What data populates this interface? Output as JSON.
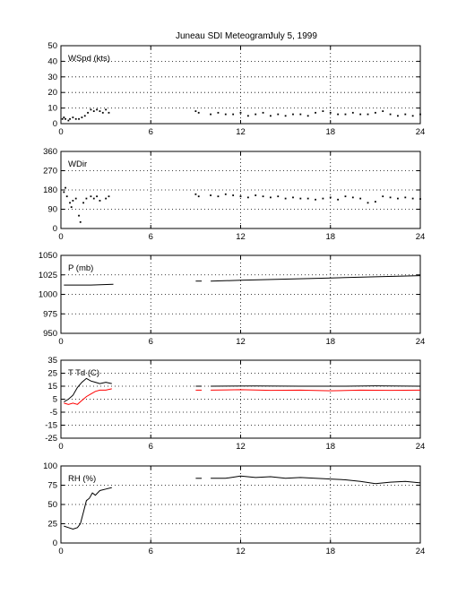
{
  "figure": {
    "title": "Juneau SDI Meteogram:",
    "date": "July  5, 1999"
  },
  "chart_data": [
    {
      "type": "scatter",
      "panel_label": "WSpd (kts)",
      "xlim": [
        0,
        24
      ],
      "ylim": [
        0,
        50
      ],
      "xticks": [
        "0",
        "6",
        "12",
        "18",
        "24"
      ],
      "yticks": [
        "0",
        "10",
        "20",
        "30",
        "40",
        "50"
      ],
      "grid": true,
      "series": [
        {
          "color": "#000000",
          "points": [
            [
              0.1,
              3
            ],
            [
              0.2,
              4
            ],
            [
              0.3,
              3
            ],
            [
              0.5,
              2
            ],
            [
              0.6,
              3
            ],
            [
              0.8,
              4
            ],
            [
              1.0,
              3
            ],
            [
              1.2,
              3
            ],
            [
              1.4,
              4
            ],
            [
              1.6,
              5
            ],
            [
              1.8,
              7
            ],
            [
              2.0,
              9
            ],
            [
              2.2,
              8
            ],
            [
              2.4,
              9
            ],
            [
              2.6,
              8
            ],
            [
              2.8,
              7
            ],
            [
              3.0,
              9
            ],
            [
              3.2,
              7
            ],
            [
              9.0,
              8
            ],
            [
              9.2,
              7
            ],
            [
              10.0,
              6
            ],
            [
              10.5,
              7
            ],
            [
              11.0,
              6
            ],
            [
              11.5,
              6
            ],
            [
              12.0,
              7
            ],
            [
              12.5,
              5
            ],
            [
              13.0,
              6
            ],
            [
              13.5,
              7
            ],
            [
              14.0,
              5
            ],
            [
              14.5,
              6
            ],
            [
              15.0,
              5
            ],
            [
              15.5,
              6
            ],
            [
              16.0,
              6
            ],
            [
              16.5,
              5
            ],
            [
              17.0,
              7
            ],
            [
              17.5,
              8
            ],
            [
              18.0,
              7
            ],
            [
              18.5,
              6
            ],
            [
              19.0,
              6
            ],
            [
              19.5,
              7
            ],
            [
              20.0,
              6
            ],
            [
              20.5,
              6
            ],
            [
              21.0,
              7
            ],
            [
              21.5,
              8
            ],
            [
              22.0,
              6
            ],
            [
              22.5,
              5
            ],
            [
              23.0,
              6
            ],
            [
              23.5,
              5
            ],
            [
              24.0,
              6
            ]
          ]
        }
      ]
    },
    {
      "type": "scatter",
      "panel_label": "WDir",
      "xlim": [
        0,
        24
      ],
      "ylim": [
        0,
        360
      ],
      "xticks": [
        "0",
        "6",
        "12",
        "18",
        "24"
      ],
      "yticks": [
        "0",
        "90",
        "180",
        "270",
        "360"
      ],
      "grid": true,
      "series": [
        {
          "color": "#000000",
          "points": [
            [
              0.2,
              170
            ],
            [
              0.3,
              190
            ],
            [
              0.4,
              150
            ],
            [
              0.6,
              120
            ],
            [
              0.7,
              100
            ],
            [
              0.8,
              130
            ],
            [
              1.0,
              140
            ],
            [
              1.2,
              60
            ],
            [
              1.3,
              30
            ],
            [
              1.5,
              120
            ],
            [
              1.7,
              140
            ],
            [
              2.0,
              150
            ],
            [
              2.2,
              140
            ],
            [
              2.4,
              150
            ],
            [
              2.6,
              130
            ],
            [
              3.0,
              140
            ],
            [
              3.2,
              150
            ],
            [
              9.0,
              160
            ],
            [
              9.2,
              150
            ],
            [
              10.0,
              155
            ],
            [
              10.5,
              150
            ],
            [
              11.0,
              160
            ],
            [
              11.5,
              155
            ],
            [
              12.0,
              150
            ],
            [
              12.5,
              145
            ],
            [
              13.0,
              155
            ],
            [
              13.5,
              150
            ],
            [
              14.0,
              145
            ],
            [
              14.5,
              150
            ],
            [
              15.0,
              140
            ],
            [
              15.5,
              145
            ],
            [
              16.0,
              140
            ],
            [
              16.5,
              140
            ],
            [
              17.0,
              135
            ],
            [
              17.5,
              140
            ],
            [
              18.0,
              145
            ],
            [
              18.5,
              135
            ],
            [
              19.0,
              150
            ],
            [
              19.5,
              145
            ],
            [
              20.0,
              140
            ],
            [
              20.5,
              120
            ],
            [
              21.0,
              125
            ],
            [
              21.5,
              150
            ],
            [
              22.0,
              145
            ],
            [
              22.5,
              140
            ],
            [
              23.0,
              145
            ],
            [
              23.5,
              140
            ],
            [
              24.0,
              138
            ]
          ]
        }
      ]
    },
    {
      "type": "line",
      "panel_label": "P (mb)",
      "xlim": [
        0,
        24
      ],
      "ylim": [
        950,
        1050
      ],
      "xticks": [
        "0",
        "6",
        "12",
        "18",
        "24"
      ],
      "yticks": [
        "950",
        "975",
        "1000",
        "1025",
        "1050"
      ],
      "grid": true,
      "series": [
        {
          "color": "#000000",
          "segments": [
            [
              [
                0.2,
                1012
              ],
              [
                2.0,
                1012
              ],
              [
                3.5,
                1013
              ]
            ],
            [
              [
                9.0,
                1017
              ],
              [
                9.4,
                1017
              ]
            ],
            [
              [
                10.0,
                1017
              ],
              [
                12.0,
                1018
              ],
              [
                15.0,
                1019.5
              ],
              [
                18.0,
                1021
              ],
              [
                21.0,
                1022.5
              ],
              [
                24.0,
                1024
              ]
            ]
          ]
        }
      ]
    },
    {
      "type": "line",
      "panel_label": "T Td (C)",
      "xlim": [
        0,
        24
      ],
      "ylim": [
        -25,
        35
      ],
      "xticks": [
        "0",
        "6",
        "12",
        "18",
        "24"
      ],
      "yticks": [
        "-25",
        "-15",
        "-5",
        "5",
        "15",
        "25",
        "35"
      ],
      "grid": true,
      "series": [
        {
          "color": "#000000",
          "segments": [
            [
              [
                0.2,
                3
              ],
              [
                0.5,
                5
              ],
              [
                0.8,
                8
              ],
              [
                1.1,
                14
              ],
              [
                1.4,
                18
              ],
              [
                1.7,
                21
              ],
              [
                2.0,
                19
              ],
              [
                2.3,
                18
              ],
              [
                2.6,
                17
              ],
              [
                3.0,
                18
              ],
              [
                3.4,
                17
              ]
            ],
            [
              [
                9.0,
                15
              ],
              [
                9.4,
                15
              ]
            ],
            [
              [
                10.0,
                15
              ],
              [
                13.0,
                15.2
              ],
              [
                16.0,
                15
              ],
              [
                19.0,
                15
              ],
              [
                21.0,
                15.3
              ],
              [
                24.0,
                15
              ]
            ]
          ]
        },
        {
          "color": "#ff0000",
          "segments": [
            [
              [
                0.2,
                2
              ],
              [
                0.5,
                1
              ],
              [
                0.8,
                2
              ],
              [
                1.1,
                1
              ],
              [
                1.4,
                4
              ],
              [
                1.7,
                7
              ],
              [
                2.0,
                9
              ],
              [
                2.3,
                11
              ],
              [
                2.6,
                12
              ],
              [
                3.0,
                12
              ],
              [
                3.4,
                13
              ]
            ],
            [
              [
                9.0,
                12
              ],
              [
                9.4,
                12
              ]
            ],
            [
              [
                10.0,
                12
              ],
              [
                12.0,
                12.3
              ],
              [
                14.0,
                11.8
              ],
              [
                16.0,
                12
              ],
              [
                18.0,
                11.5
              ],
              [
                20.0,
                12
              ],
              [
                22.0,
                11.8
              ],
              [
                24.0,
                12
              ]
            ]
          ]
        }
      ]
    },
    {
      "type": "line",
      "panel_label": "RH (%)",
      "xlim": [
        0,
        24
      ],
      "ylim": [
        0,
        100
      ],
      "xticks": [
        "0",
        "6",
        "12",
        "18",
        "24"
      ],
      "yticks": [
        "0",
        "25",
        "50",
        "75",
        "100"
      ],
      "grid": true,
      "series": [
        {
          "color": "#000000",
          "segments": [
            [
              [
                0.2,
                22
              ],
              [
                0.5,
                20
              ],
              [
                0.8,
                18
              ],
              [
                1.1,
                20
              ],
              [
                1.3,
                25
              ],
              [
                1.5,
                40
              ],
              [
                1.7,
                55
              ],
              [
                1.9,
                58
              ],
              [
                2.1,
                65
              ],
              [
                2.3,
                62
              ],
              [
                2.6,
                68
              ],
              [
                3.0,
                70
              ],
              [
                3.4,
                72
              ]
            ],
            [
              [
                9.0,
                84
              ],
              [
                9.4,
                84
              ]
            ],
            [
              [
                10.0,
                84
              ],
              [
                11.0,
                84
              ],
              [
                12.0,
                87
              ],
              [
                13.0,
                85
              ],
              [
                14.0,
                86
              ],
              [
                15.0,
                84
              ],
              [
                16.0,
                85
              ],
              [
                17.0,
                84
              ],
              [
                18.0,
                83
              ],
              [
                19.0,
                82
              ],
              [
                20.0,
                80
              ],
              [
                21.0,
                77
              ],
              [
                22.0,
                79
              ],
              [
                23.0,
                80
              ],
              [
                24.0,
                78
              ]
            ]
          ]
        }
      ]
    }
  ]
}
